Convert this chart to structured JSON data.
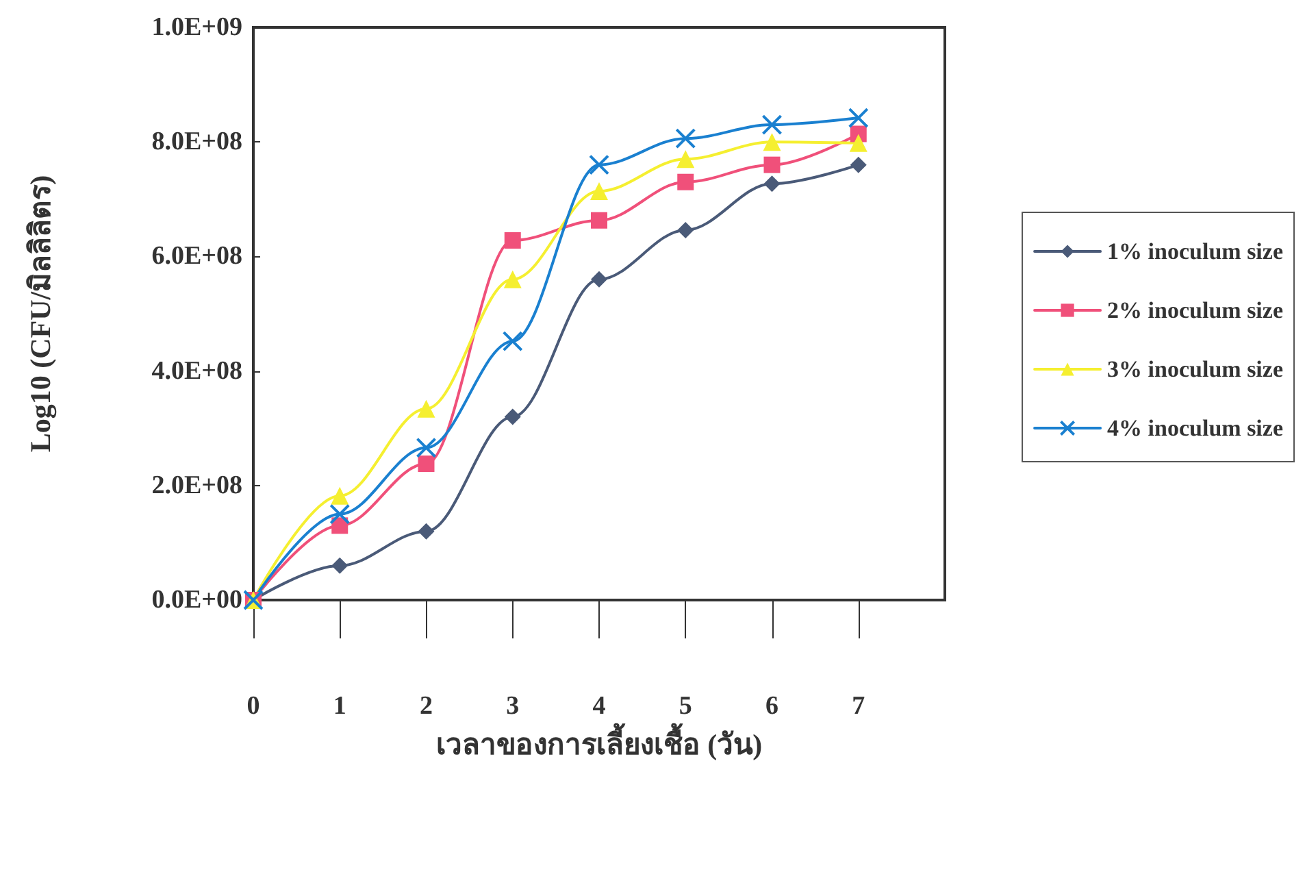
{
  "chart_data": {
    "type": "line",
    "xlabel": "เวลาของการเลี้ยงเชื้อ (วัน)",
    "ylabel": "Log10 (CFU/มิลลิลิตร)",
    "x": [
      0,
      1,
      2,
      3,
      4,
      5,
      6,
      7
    ],
    "xlim": [
      0,
      8
    ],
    "xticks": [
      0,
      1,
      2,
      3,
      4,
      5,
      6,
      7
    ],
    "ylim": [
      0,
      1000000000
    ],
    "yticks": [
      {
        "value": 0,
        "label": "0.0E+00"
      },
      {
        "value": 200000000,
        "label": "2.0E+08"
      },
      {
        "value": 400000000,
        "label": "4.0E+08"
      },
      {
        "value": 600000000,
        "label": "6.0E+08"
      },
      {
        "value": 800000000,
        "label": "8.0E+08"
      },
      {
        "value": 1000000000,
        "label": "1.0E+09"
      }
    ],
    "grid": false,
    "legend": "right",
    "line_style": "solid",
    "series": [
      {
        "name": "1% inoculum size",
        "color": "#4a5a78",
        "marker": "diamond",
        "values": [
          0,
          60000000,
          120000000,
          320000000,
          560000000,
          646000000,
          727000000,
          760000000
        ]
      },
      {
        "name": "2% inoculum size",
        "color": "#f0507a",
        "marker": "square",
        "values": [
          0,
          130000000,
          238000000,
          628000000,
          663000000,
          730000000,
          760000000,
          814000000
        ]
      },
      {
        "name": "3% inoculum size",
        "color": "#f5ef30",
        "marker": "triangle",
        "values": [
          0,
          182000000,
          334000000,
          560000000,
          714000000,
          770000000,
          800000000,
          798000000
        ]
      },
      {
        "name": "4% inoculum size",
        "color": "#1a80d0",
        "marker": "cross",
        "values": [
          0,
          150000000,
          266000000,
          452000000,
          760000000,
          806000000,
          830000000,
          842000000
        ]
      }
    ]
  }
}
